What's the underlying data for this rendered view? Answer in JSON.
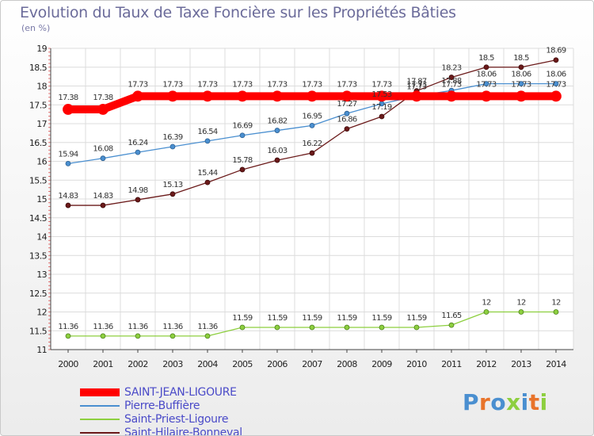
{
  "chart_data": {
    "type": "line",
    "title": "Evolution du Taux de Taxe Foncière sur les Propriétés Bâties",
    "unit": "(en %)",
    "x": [
      "2000",
      "2001",
      "2002",
      "2003",
      "2004",
      "2005",
      "2006",
      "2007",
      "2008",
      "2009",
      "2010",
      "2011",
      "2012",
      "2013",
      "2014"
    ],
    "yticks": [
      "11",
      "11.5",
      "12",
      "12.5",
      "13",
      "13.5",
      "14",
      "14.5",
      "15",
      "15.5",
      "16",
      "16.5",
      "17",
      "17.5",
      "18",
      "18.5",
      "19"
    ],
    "ylim": [
      11,
      19
    ],
    "grid": true,
    "legend_position": "bottom-left",
    "series": [
      {
        "name": "SAINT-JEAN-LIGOURE",
        "color": "#ff0000",
        "values": [
          17.38,
          17.38,
          17.73,
          17.73,
          17.73,
          17.73,
          17.73,
          17.73,
          17.73,
          17.73,
          17.73,
          17.73,
          17.73,
          17.73,
          17.73
        ]
      },
      {
        "name": "Pierre-Buffière",
        "color": "#4a8fd0",
        "values": [
          15.94,
          16.08,
          16.24,
          16.39,
          16.54,
          16.69,
          16.82,
          16.95,
          17.27,
          17.53,
          17.73,
          17.88,
          18.06,
          18.06,
          18.06
        ]
      },
      {
        "name": "Saint-Priest-Ligoure",
        "color": "#8dcf3f",
        "values": [
          11.36,
          11.36,
          11.36,
          11.36,
          11.36,
          11.59,
          11.59,
          11.59,
          11.59,
          11.59,
          11.59,
          11.65,
          12,
          12,
          12
        ]
      },
      {
        "name": "Saint-Hilaire-Bonneval",
        "color": "#6b1a1a",
        "values": [
          14.83,
          14.83,
          14.98,
          15.13,
          15.44,
          15.78,
          16.03,
          16.22,
          16.86,
          17.19,
          17.87,
          18.23,
          18.5,
          18.5,
          18.69
        ]
      }
    ]
  },
  "logo": {
    "text": "Proxiti",
    "colors": [
      "#4a8fd0",
      "#e8732a",
      "#4a8fd0",
      "#8dcf3f",
      "#4a8fd0",
      "#e8732a",
      "#8dcf3f"
    ]
  }
}
